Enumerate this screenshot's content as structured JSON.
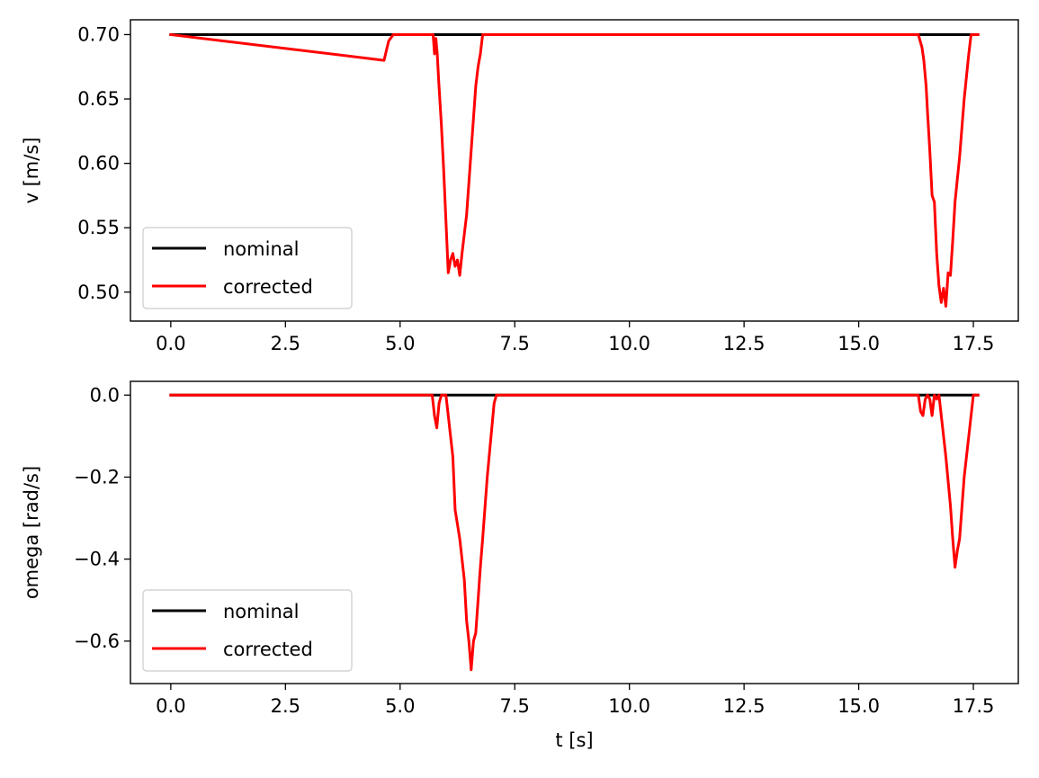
{
  "chart_data": [
    {
      "type": "line",
      "title": "",
      "xlabel": "",
      "ylabel": "v [m/s]",
      "xlim": [
        -0.88,
        18.48
      ],
      "ylim": [
        0.4775,
        0.7115
      ],
      "xticks": [
        0.0,
        2.5,
        5.0,
        7.5,
        10.0,
        12.5,
        15.0,
        17.5
      ],
      "xtick_labels": [
        "0.0",
        "2.5",
        "5.0",
        "7.5",
        "10.0",
        "12.5",
        "15.0",
        "17.5"
      ],
      "yticks": [
        0.5,
        0.55,
        0.6,
        0.65,
        0.7
      ],
      "ytick_labels": [
        "0.50",
        "0.55",
        "0.60",
        "0.65",
        "0.70"
      ],
      "grid": false,
      "legend_position": "lower-left",
      "series": [
        {
          "name": "nominal",
          "color": "#000000",
          "x": [
            0.0,
            17.6
          ],
          "y": [
            0.7,
            0.7
          ]
        },
        {
          "name": "corrected",
          "color": "#ff0000",
          "x": [
            0.0,
            4.65,
            4.75,
            4.85,
            5.0,
            5.5,
            5.72,
            5.75,
            5.78,
            5.81,
            5.84,
            5.9,
            5.95,
            6.0,
            6.05,
            6.1,
            6.15,
            6.2,
            6.25,
            6.3,
            6.35,
            6.4,
            6.45,
            6.5,
            6.55,
            6.6,
            6.65,
            6.7,
            6.75,
            6.8,
            6.83,
            7.0,
            10.0,
            15.0,
            16.3,
            16.38,
            16.42,
            16.47,
            16.5,
            16.55,
            16.6,
            16.65,
            16.7,
            16.75,
            16.8,
            16.85,
            16.9,
            16.95,
            17.0,
            17.05,
            17.1,
            17.2,
            17.3,
            17.4,
            17.45,
            17.5,
            17.6
          ],
          "y": [
            0.7,
            0.68,
            0.695,
            0.7,
            0.7,
            0.7,
            0.7,
            0.685,
            0.697,
            0.685,
            0.665,
            0.63,
            0.595,
            0.555,
            0.515,
            0.525,
            0.53,
            0.52,
            0.525,
            0.513,
            0.53,
            0.545,
            0.56,
            0.585,
            0.61,
            0.635,
            0.66,
            0.675,
            0.685,
            0.7,
            0.7,
            0.7,
            0.7,
            0.7,
            0.7,
            0.69,
            0.68,
            0.66,
            0.64,
            0.61,
            0.575,
            0.57,
            0.53,
            0.505,
            0.492,
            0.503,
            0.489,
            0.515,
            0.513,
            0.54,
            0.57,
            0.605,
            0.65,
            0.685,
            0.7,
            0.7,
            0.7
          ]
        }
      ]
    },
    {
      "type": "line",
      "title": "",
      "xlabel": "t [s]",
      "ylabel": "omega [rad/s]",
      "xlim": [
        -0.88,
        18.48
      ],
      "ylim": [
        -0.7035,
        0.0335
      ],
      "xticks": [
        0.0,
        2.5,
        5.0,
        7.5,
        10.0,
        12.5,
        15.0,
        17.5
      ],
      "xtick_labels": [
        "0.0",
        "2.5",
        "5.0",
        "7.5",
        "10.0",
        "12.5",
        "15.0",
        "17.5"
      ],
      "yticks": [
        -0.6,
        -0.4,
        -0.2,
        0.0
      ],
      "ytick_labels": [
        "−0.6",
        "−0.4",
        "−0.2",
        "0.0"
      ],
      "grid": false,
      "legend_position": "lower-left",
      "series": [
        {
          "name": "nominal",
          "color": "#000000",
          "x": [
            0.0,
            17.6
          ],
          "y": [
            0.0,
            0.0
          ]
        },
        {
          "name": "corrected",
          "color": "#ff0000",
          "x": [
            0.0,
            5.7,
            5.75,
            5.8,
            5.85,
            5.9,
            6.0,
            6.1,
            6.15,
            6.2,
            6.3,
            6.4,
            6.45,
            6.5,
            6.55,
            6.6,
            6.65,
            6.7,
            6.75,
            6.8,
            6.9,
            7.0,
            7.05,
            7.1,
            8.0,
            16.3,
            16.35,
            16.4,
            16.45,
            16.5,
            16.55,
            16.6,
            16.65,
            16.7,
            16.75,
            16.8,
            16.9,
            17.0,
            17.05,
            17.1,
            17.15,
            17.2,
            17.3,
            17.4,
            17.5,
            17.6
          ],
          "y": [
            0.0,
            0.0,
            -0.05,
            -0.08,
            -0.02,
            0.0,
            0.0,
            -0.1,
            -0.15,
            -0.28,
            -0.35,
            -0.45,
            -0.55,
            -0.6,
            -0.67,
            -0.6,
            -0.58,
            -0.5,
            -0.42,
            -0.35,
            -0.2,
            -0.08,
            -0.02,
            0.0,
            0.0,
            0.0,
            -0.04,
            -0.05,
            -0.01,
            0.0,
            -0.01,
            -0.05,
            0.0,
            -0.01,
            0.0,
            -0.05,
            -0.15,
            -0.27,
            -0.35,
            -0.42,
            -0.38,
            -0.35,
            -0.2,
            -0.1,
            0.0,
            0.0
          ]
        }
      ]
    }
  ]
}
